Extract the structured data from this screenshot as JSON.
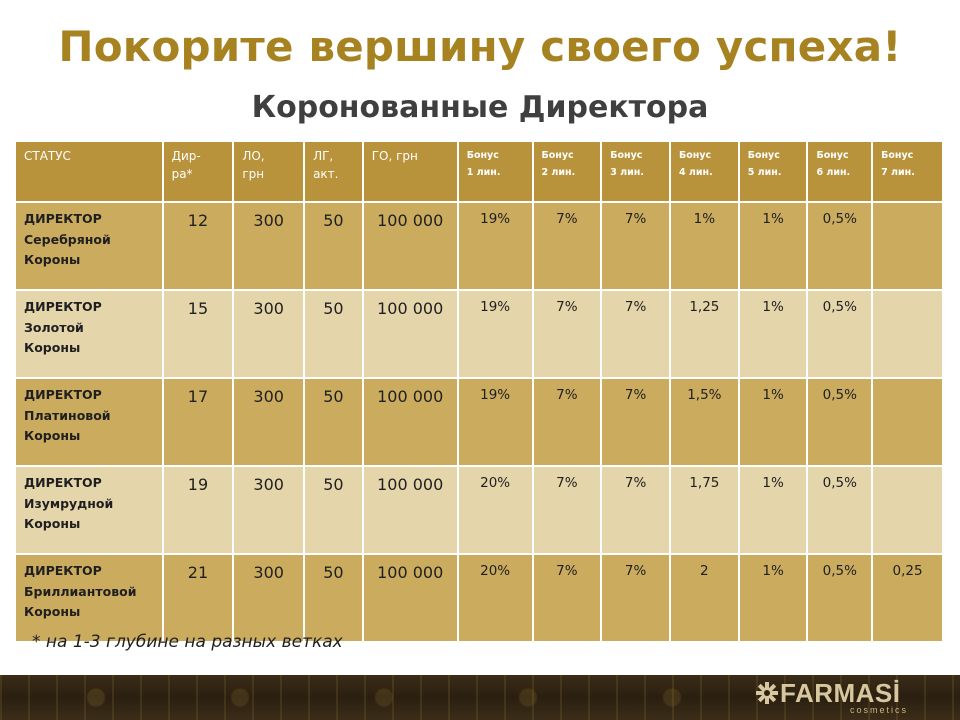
{
  "slide": {
    "title": "Покорите вершину своего успеха!",
    "subtitle": "Коронованные Директора",
    "footnote": "* на 1-3 глубине на разных ветках"
  },
  "table": {
    "headers": [
      {
        "line1": "СТАТУС",
        "line2": ""
      },
      {
        "line1": "Дир-",
        "line2": "ра*"
      },
      {
        "line1": "ЛО,",
        "line2": "грн"
      },
      {
        "line1": "ЛГ,",
        "line2": "акт."
      },
      {
        "line1": "ГО, грн",
        "line2": ""
      },
      {
        "line1": "Бонус",
        "line2": "1 лин."
      },
      {
        "line1": "Бонус",
        "line2": "2 лин."
      },
      {
        "line1": "Бонус",
        "line2": "3 лин."
      },
      {
        "line1": "Бонус",
        "line2": "4 лин."
      },
      {
        "line1": "Бонус",
        "line2": "5 лин."
      },
      {
        "line1": "Бонус",
        "line2": "6 лин."
      },
      {
        "line1": "Бонус",
        "line2": "7 лин."
      }
    ],
    "rows": [
      {
        "status": [
          "ДИРЕКТОР",
          "Серебряной",
          "Короны"
        ],
        "dirs": "12",
        "lo": "300",
        "lg": "50",
        "go": "100 000",
        "b1": "19%",
        "b2": "7%",
        "b3": "7%",
        "b4": "1%",
        "b5": "1%",
        "b6": "0,5%",
        "b7": ""
      },
      {
        "status": [
          "ДИРЕКТОР",
          "Золотой",
          "Короны"
        ],
        "dirs": "15",
        "lo": "300",
        "lg": "50",
        "go": "100 000",
        "b1": "19%",
        "b2": "7%",
        "b3": "7%",
        "b4": "1,25",
        "b5": "1%",
        "b6": "0,5%",
        "b7": ""
      },
      {
        "status": [
          "ДИРЕКТОР",
          "Платиновой",
          "Короны"
        ],
        "dirs": "17",
        "lo": "300",
        "lg": "50",
        "go": "100 000",
        "b1": "19%",
        "b2": "7%",
        "b3": "7%",
        "b4": "1,5%",
        "b5": "1%",
        "b6": "0,5%",
        "b7": ""
      },
      {
        "status": [
          "ДИРЕКТОР",
          "Изумрудной",
          "Короны"
        ],
        "dirs": "19",
        "lo": "300",
        "lg": "50",
        "go": "100 000",
        "b1": "20%",
        "b2": "7%",
        "b3": "7%",
        "b4": "1,75",
        "b5": "1%",
        "b6": "0,5%",
        "b7": ""
      },
      {
        "status": [
          "ДИРЕКТОР",
          "Бриллиантовой",
          "Короны"
        ],
        "dirs": "21",
        "lo": "300",
        "lg": "50",
        "go": "100 000",
        "b1": "20%",
        "b2": "7%",
        "b3": "7%",
        "b4": "2",
        "b5": "1%",
        "b6": "0,5%",
        "b7": "0,25"
      }
    ]
  },
  "logo": {
    "icon": "farmasi-star-icon",
    "word": "FARMASİ",
    "sub": "cosmetics"
  },
  "colors": {
    "title": "#a78220",
    "header_bg": "#b9933b",
    "row_dark": "#cbac5e",
    "row_light": "#e5d5ab"
  }
}
